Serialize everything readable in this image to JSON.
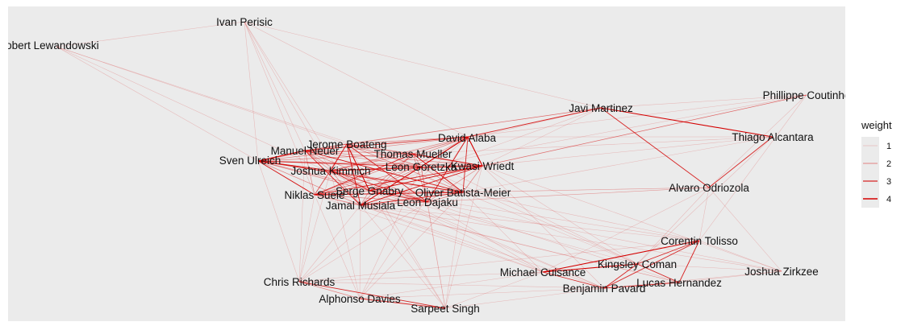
{
  "network": {
    "nodes": [
      {
        "id": "perisic",
        "label": "Ivan Perisic"
      },
      {
        "id": "lewandowski",
        "label": "Robert Lewandowski"
      },
      {
        "id": "coutinho",
        "label": "Phillippe Coutinho"
      },
      {
        "id": "martinez",
        "label": "Javi Martinez"
      },
      {
        "id": "thiago",
        "label": "Thiago Alcantara"
      },
      {
        "id": "alaba",
        "label": "David Alaba"
      },
      {
        "id": "boateng",
        "label": "Jerome Boateng"
      },
      {
        "id": "neuer",
        "label": "Manuel Neuer"
      },
      {
        "id": "mueller",
        "label": "Thomas Mueller"
      },
      {
        "id": "ulreich",
        "label": "Sven Ulreich"
      },
      {
        "id": "kimmich",
        "label": "Joshua Kimmich"
      },
      {
        "id": "goretzka",
        "label": "Leon Goretzka"
      },
      {
        "id": "wriedt",
        "label": "Kwasi Wriedt"
      },
      {
        "id": "odriozola",
        "label": "Alvaro Odriozola"
      },
      {
        "id": "gnabry",
        "label": "Serge Gnabry"
      },
      {
        "id": "batista",
        "label": "Oliver Batista-Meier"
      },
      {
        "id": "suele",
        "label": "Niklas Suele"
      },
      {
        "id": "musiala",
        "label": "Jamal Musiala"
      },
      {
        "id": "dajaku",
        "label": "Leon Dajaku"
      },
      {
        "id": "tolisso",
        "label": "Corentin Tolisso"
      },
      {
        "id": "coman",
        "label": "Kingsley Coman"
      },
      {
        "id": "cuisance",
        "label": "Michael Cuisance"
      },
      {
        "id": "zirkzee",
        "label": "Joshua Zirkzee"
      },
      {
        "id": "hernandez",
        "label": "Lucas Hernandez"
      },
      {
        "id": "pavard",
        "label": "Benjamin Pavard"
      },
      {
        "id": "richards",
        "label": "Chris Richards"
      },
      {
        "id": "davies",
        "label": "Alphonso Davies"
      },
      {
        "id": "singh",
        "label": "Sarpeet Singh"
      }
    ],
    "core_group": [
      "boateng",
      "neuer",
      "mueller",
      "ulreich",
      "kimmich",
      "goretzka",
      "wriedt",
      "alaba",
      "gnabry",
      "batista",
      "suele",
      "musiala",
      "dajaku"
    ],
    "edges_strong": [
      [
        "martinez",
        "thiago",
        4
      ],
      [
        "martinez",
        "odriozola",
        3
      ],
      [
        "thiago",
        "odriozola",
        3
      ],
      [
        "martinez",
        "alaba",
        3
      ],
      [
        "martinez",
        "boateng",
        2
      ],
      [
        "tolisso",
        "cuisance",
        4
      ],
      [
        "tolisso",
        "coman",
        3
      ],
      [
        "tolisso",
        "hernandez",
        3
      ],
      [
        "tolisso",
        "pavard",
        3
      ],
      [
        "coman",
        "cuisance",
        4
      ],
      [
        "coman",
        "pavard",
        3
      ],
      [
        "cuisance",
        "pavard",
        3
      ],
      [
        "hernandez",
        "pavard",
        3
      ],
      [
        "coman",
        "hernandez",
        3
      ],
      [
        "richards",
        "singh",
        3
      ],
      [
        "davies",
        "singh",
        3
      ],
      [
        "richards",
        "davies",
        2
      ],
      [
        "ulreich",
        "neuer",
        4
      ],
      [
        "ulreich",
        "suele",
        3
      ],
      [
        "ulreich",
        "kimmich",
        3
      ],
      [
        "alaba",
        "wriedt",
        4
      ],
      [
        "alaba",
        "goretzka",
        3
      ],
      [
        "alaba",
        "musiala",
        3
      ],
      [
        "boateng",
        "gnabry",
        3
      ],
      [
        "batista",
        "mueller",
        3
      ],
      [
        "kimmich",
        "wriedt",
        3
      ],
      [
        "neuer",
        "batista",
        3
      ],
      [
        "musiala",
        "wriedt",
        3
      ],
      [
        "dajaku",
        "alaba",
        3
      ],
      [
        "suele",
        "batista",
        3
      ],
      [
        "gnabry",
        "wriedt",
        3
      ],
      [
        "boateng",
        "musiala",
        3
      ]
    ],
    "edges_light": [
      [
        "lewandowski",
        "perisic",
        1
      ],
      [
        "lewandowski",
        "ulreich",
        1
      ],
      [
        "lewandowski",
        "boateng",
        1
      ],
      [
        "lewandowski",
        "goretzka",
        1
      ],
      [
        "lewandowski",
        "gnabry",
        1
      ],
      [
        "perisic",
        "ulreich",
        1
      ],
      [
        "perisic",
        "suele",
        1
      ],
      [
        "perisic",
        "neuer",
        1
      ],
      [
        "perisic",
        "alaba",
        1
      ],
      [
        "perisic",
        "kimmich",
        1
      ],
      [
        "perisic",
        "musiala",
        1
      ],
      [
        "perisic",
        "martinez",
        1
      ],
      [
        "coutinho",
        "martinez",
        1
      ],
      [
        "coutinho",
        "alaba",
        1
      ],
      [
        "coutinho",
        "wriedt",
        1
      ],
      [
        "coutinho",
        "goretzka",
        1
      ],
      [
        "coutinho",
        "gnabry",
        2
      ],
      [
        "coutinho",
        "odriozola",
        1
      ],
      [
        "coutinho",
        "tolisso",
        1
      ],
      [
        "thiago",
        "alaba",
        1
      ],
      [
        "thiago",
        "mueller",
        1
      ],
      [
        "thiago",
        "wriedt",
        1
      ],
      [
        "thiago",
        "batista",
        1
      ],
      [
        "thiago",
        "coman",
        1
      ],
      [
        "martinez",
        "neuer",
        1
      ],
      [
        "martinez",
        "wriedt",
        1
      ],
      [
        "martinez",
        "gnabry",
        1
      ],
      [
        "martinez",
        "kimmich",
        1
      ],
      [
        "odriozola",
        "tolisso",
        1
      ],
      [
        "odriozola",
        "batista",
        1
      ],
      [
        "odriozola",
        "dajaku",
        1
      ],
      [
        "odriozola",
        "suele",
        1
      ],
      [
        "odriozola",
        "coman",
        1
      ],
      [
        "odriozola",
        "zirkzee",
        1
      ],
      [
        "odriozola",
        "cuisance",
        1
      ],
      [
        "odriozola",
        "musiala",
        1
      ],
      [
        "tolisso",
        "zirkzee",
        1
      ],
      [
        "tolisso",
        "musiala",
        1
      ],
      [
        "tolisso",
        "batista",
        1
      ],
      [
        "tolisso",
        "richards",
        1
      ],
      [
        "tolisso",
        "gnabry",
        1
      ],
      [
        "zirkzee",
        "coman",
        1
      ],
      [
        "zirkzee",
        "hernandez",
        1
      ],
      [
        "zirkzee",
        "pavard",
        1
      ],
      [
        "zirkzee",
        "wriedt",
        1
      ],
      [
        "zirkzee",
        "musiala",
        1
      ],
      [
        "zirkzee",
        "dajaku",
        1
      ],
      [
        "cuisance",
        "musiala",
        1
      ],
      [
        "cuisance",
        "batista",
        1
      ],
      [
        "cuisance",
        "kimmich",
        1
      ],
      [
        "cuisance",
        "richards",
        1
      ],
      [
        "cuisance",
        "singh",
        1
      ],
      [
        "cuisance",
        "davies",
        1
      ],
      [
        "cuisance",
        "suele",
        1
      ],
      [
        "cuisance",
        "dajaku",
        1
      ],
      [
        "coman",
        "gnabry",
        1
      ],
      [
        "coman",
        "mueller",
        1
      ],
      [
        "coman",
        "wriedt",
        1
      ],
      [
        "coman",
        "batista",
        1
      ],
      [
        "hernandez",
        "goretzka",
        1
      ],
      [
        "hernandez",
        "dajaku",
        1
      ],
      [
        "hernandez",
        "musiala",
        1
      ],
      [
        "hernandez",
        "suele",
        1
      ],
      [
        "pavard",
        "kimmich",
        1
      ],
      [
        "pavard",
        "wriedt",
        1
      ],
      [
        "pavard",
        "gnabry",
        1
      ],
      [
        "pavard",
        "singh",
        1
      ],
      [
        "pavard",
        "richards",
        1
      ],
      [
        "pavard",
        "davies",
        1
      ],
      [
        "pavard",
        "musiala",
        1
      ],
      [
        "richards",
        "suele",
        1
      ],
      [
        "richards",
        "musiala",
        1
      ],
      [
        "richards",
        "kimmich",
        1
      ],
      [
        "richards",
        "alaba",
        1
      ],
      [
        "richards",
        "dajaku",
        1
      ],
      [
        "richards",
        "neuer",
        1
      ],
      [
        "richards",
        "ulreich",
        1
      ],
      [
        "davies",
        "musiala",
        1
      ],
      [
        "davies",
        "kimmich",
        1
      ],
      [
        "davies",
        "goretzka",
        1
      ],
      [
        "davies",
        "suele",
        1
      ],
      [
        "davies",
        "batista",
        1
      ],
      [
        "davies",
        "alaba",
        1
      ],
      [
        "singh",
        "musiala",
        1
      ],
      [
        "singh",
        "dajaku",
        1
      ],
      [
        "singh",
        "goretzka",
        1
      ],
      [
        "singh",
        "gnabry",
        1
      ],
      [
        "singh",
        "wriedt",
        1
      ],
      [
        "singh",
        "batista",
        1
      ],
      [
        "singh",
        "boateng",
        1
      ]
    ]
  },
  "legend": {
    "title": "weight",
    "levels": [
      "1",
      "2",
      "3",
      "4"
    ]
  },
  "colors": {
    "panel": "#ebebeb",
    "edge": "#d40000",
    "label": "#111111"
  }
}
